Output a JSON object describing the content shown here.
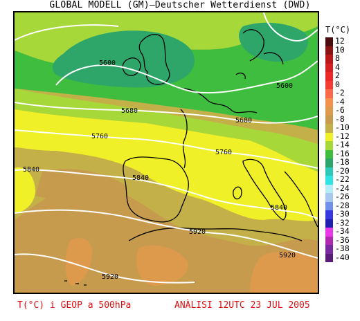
{
  "title": "GLOBAL MODELL (GM)—Deutscher Wetterdienst (DWD)",
  "legend": {
    "title": "T(°C)",
    "entries": [
      {
        "label": "12",
        "color": "#4a0c0c"
      },
      {
        "label": "10",
        "color": "#8a1414"
      },
      {
        "label": "8",
        "color": "#b81818"
      },
      {
        "label": "4",
        "color": "#d42020"
      },
      {
        "label": "2",
        "color": "#ec2828"
      },
      {
        "label": "0",
        "color": "#f53c32"
      },
      {
        "label": "-2",
        "color": "#f76a4a"
      },
      {
        "label": "-4",
        "color": "#f3924a"
      },
      {
        "label": "-6",
        "color": "#de9a4c"
      },
      {
        "label": "-8",
        "color": "#c79b4e"
      },
      {
        "label": "-10",
        "color": "#c4b048"
      },
      {
        "label": "-12",
        "color": "#f0f028"
      },
      {
        "label": "-14",
        "color": "#a6d83a"
      },
      {
        "label": "-16",
        "color": "#3ebd3e"
      },
      {
        "label": "-18",
        "color": "#2ea66a"
      },
      {
        "label": "-20",
        "color": "#2ec8b8"
      },
      {
        "label": "-22",
        "color": "#30e4e4"
      },
      {
        "label": "-24",
        "color": "#b4ecf8"
      },
      {
        "label": "-26",
        "color": "#a8c8f0"
      },
      {
        "label": "-28",
        "color": "#7090ec"
      },
      {
        "label": "-30",
        "color": "#3838e0"
      },
      {
        "label": "-32",
        "color": "#2020b0"
      },
      {
        "label": "-34",
        "color": "#e838e8"
      },
      {
        "label": "-36",
        "color": "#b02ab0"
      },
      {
        "label": "-38",
        "color": "#7a2aa0"
      },
      {
        "label": "-40",
        "color": "#5a1c7a"
      }
    ]
  },
  "contours": [
    "5600",
    "5600",
    "5680",
    "5680",
    "5760",
    "5760",
    "5840",
    "5840",
    "5840",
    "5920",
    "5920",
    "5920"
  ],
  "footer": {
    "left": "T(°C) i GEOP a 500hPa",
    "right": "ANÀLISI 12UTC 23 JUL 2005"
  }
}
